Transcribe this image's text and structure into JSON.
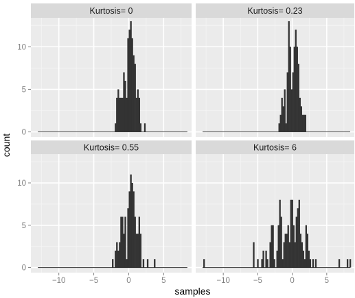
{
  "chart_data": {
    "type": "bar",
    "xlabel": "samples",
    "ylabel": "count",
    "xlim": [
      -14,
      9
    ],
    "ylim": [
      -0.6,
      13.4
    ],
    "xticks": [
      -10,
      -5,
      0,
      5
    ],
    "yticks": [
      0,
      5,
      10
    ],
    "bin_width": 0.2,
    "grid": true,
    "colors": {
      "panel_bg": "#ebebeb",
      "strip_bg": "#d9d9d9",
      "grid_major": "#ffffff",
      "grid_minor": "#f5f5f5",
      "bar": "#333333"
    },
    "panels": [
      {
        "title": "Kurtosis= 0",
        "baseline_range": [
          -13,
          8.4
        ],
        "bars": [
          [
            -2.0,
            1
          ],
          [
            -1.8,
            4
          ],
          [
            -1.6,
            5
          ],
          [
            -1.4,
            4
          ],
          [
            -1.2,
            4
          ],
          [
            -1.0,
            4
          ],
          [
            -0.8,
            7
          ],
          [
            -0.6,
            6
          ],
          [
            -0.4,
            4
          ],
          [
            -0.2,
            11
          ],
          [
            0.0,
            12
          ],
          [
            0.2,
            13
          ],
          [
            0.4,
            11
          ],
          [
            0.6,
            9
          ],
          [
            0.8,
            8
          ],
          [
            1.0,
            4
          ],
          [
            1.2,
            5
          ],
          [
            1.4,
            4
          ],
          [
            1.6,
            1
          ],
          [
            2.2,
            1
          ]
        ]
      },
      {
        "title": "Kurtosis= 0.23",
        "baseline_range": [
          -13,
          8.4
        ],
        "bars": [
          [
            -2.0,
            1
          ],
          [
            -1.8,
            2
          ],
          [
            -1.6,
            4
          ],
          [
            -1.4,
            3
          ],
          [
            -1.2,
            5
          ],
          [
            -1.0,
            1
          ],
          [
            -0.8,
            7
          ],
          [
            -0.6,
            13
          ],
          [
            -0.4,
            10
          ],
          [
            -0.2,
            5
          ],
          [
            0.0,
            7
          ],
          [
            0.2,
            10
          ],
          [
            0.4,
            12
          ],
          [
            0.6,
            10
          ],
          [
            0.8,
            8
          ],
          [
            1.0,
            4
          ],
          [
            1.2,
            3
          ],
          [
            1.4,
            2
          ],
          [
            1.6,
            2
          ],
          [
            1.8,
            2
          ]
        ]
      },
      {
        "title": "Kurtosis= 0.55",
        "baseline_range": [
          -13,
          8.4
        ],
        "bars": [
          [
            -2.4,
            1
          ],
          [
            -2.0,
            2
          ],
          [
            -1.8,
            3
          ],
          [
            -1.6,
            2
          ],
          [
            -1.4,
            3
          ],
          [
            -1.2,
            6
          ],
          [
            -1.0,
            6
          ],
          [
            -0.8,
            4
          ],
          [
            -0.6,
            6
          ],
          [
            -0.4,
            1
          ],
          [
            -0.2,
            7
          ],
          [
            0.0,
            9
          ],
          [
            0.2,
            11
          ],
          [
            0.4,
            10
          ],
          [
            0.6,
            9
          ],
          [
            0.8,
            6
          ],
          [
            1.0,
            4
          ],
          [
            1.2,
            4
          ],
          [
            1.4,
            6
          ],
          [
            1.6,
            4
          ],
          [
            2.0,
            1
          ],
          [
            2.6,
            1
          ],
          [
            3.6,
            1
          ]
        ]
      },
      {
        "title": "Kurtosis= 6",
        "baseline_range": [
          -13,
          8.4
        ],
        "bars": [
          [
            -12.9,
            1
          ],
          [
            -5.7,
            3
          ],
          [
            -5.1,
            1
          ],
          [
            -4.5,
            1
          ],
          [
            -4.3,
            2
          ],
          [
            -3.9,
            2
          ],
          [
            -3.7,
            1
          ],
          [
            -3.3,
            3
          ],
          [
            -3.1,
            5
          ],
          [
            -2.9,
            5
          ],
          [
            -2.7,
            1
          ],
          [
            -2.3,
            2
          ],
          [
            -2.1,
            5
          ],
          [
            -1.9,
            8
          ],
          [
            -1.7,
            6
          ],
          [
            -1.5,
            1
          ],
          [
            -1.3,
            3
          ],
          [
            -1.1,
            4
          ],
          [
            -0.9,
            4
          ],
          [
            -0.7,
            5
          ],
          [
            -0.5,
            3
          ],
          [
            -0.3,
            8
          ],
          [
            -0.1,
            8
          ],
          [
            0.1,
            5
          ],
          [
            0.3,
            3
          ],
          [
            0.5,
            6
          ],
          [
            0.7,
            7
          ],
          [
            0.9,
            8
          ],
          [
            1.1,
            4
          ],
          [
            1.3,
            3
          ],
          [
            1.5,
            2
          ],
          [
            1.7,
            1
          ],
          [
            1.9,
            5
          ],
          [
            2.1,
            4
          ],
          [
            2.3,
            2
          ],
          [
            2.5,
            1
          ],
          [
            2.9,
            1
          ],
          [
            3.3,
            1
          ],
          [
            6.7,
            1
          ],
          [
            7.9,
            1
          ],
          [
            8.3,
            1
          ]
        ]
      }
    ]
  }
}
